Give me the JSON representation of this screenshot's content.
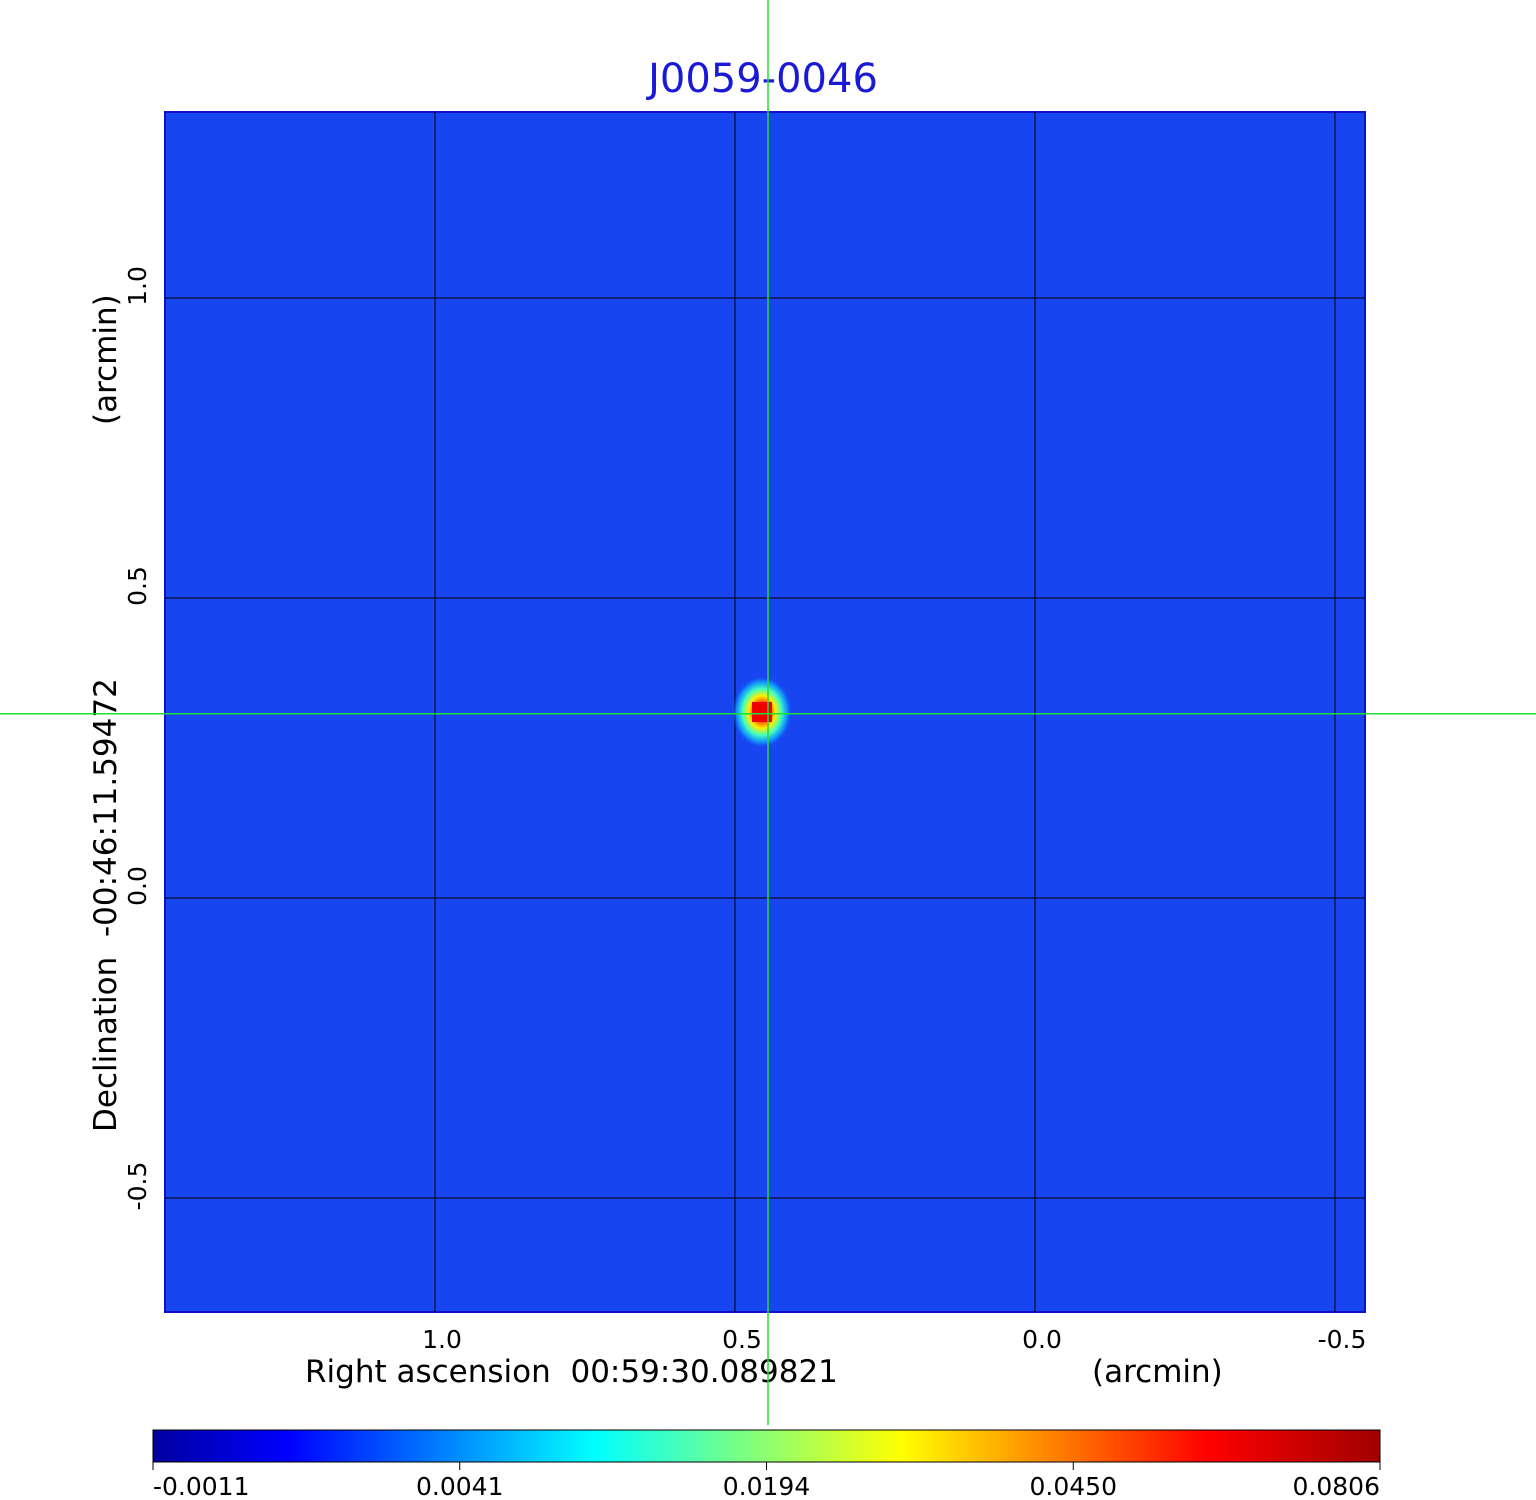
{
  "chart_data": {
    "type": "heatmap",
    "title": "J0059-0046",
    "xlabel": "Right ascension  00:59:30.089821",
    "xunit": "(arcmin)",
    "ylabel": "Declination  -00:46:11.59472",
    "yunit": "(arcmin)",
    "x_range": [
      1.45,
      -0.55
    ],
    "y_range": [
      -0.69,
      1.31
    ],
    "x_ticks": [
      {
        "value": 1.0,
        "label": "1.0"
      },
      {
        "value": 0.5,
        "label": "0.5"
      },
      {
        "value": 0.0,
        "label": "0.0"
      },
      {
        "value": -0.5,
        "label": "-0.5"
      }
    ],
    "y_ticks": [
      {
        "value": -0.5,
        "label": "-0.5"
      },
      {
        "value": 0.0,
        "label": "0.0"
      },
      {
        "value": 0.5,
        "label": "0.5"
      },
      {
        "value": 1.0,
        "label": "1.0"
      }
    ],
    "grid": true,
    "source": {
      "x": 0.455,
      "y": 0.31,
      "peak": 0.0806
    },
    "crosshair": {
      "x": 0.445,
      "y": 0.307
    },
    "colorbar": {
      "placement": "bottom",
      "colormap": "jet",
      "tick_labels": [
        "-0.0011",
        "0.0041",
        "0.0194",
        "0.0450",
        "0.0806"
      ],
      "tick_values": [
        -0.0011,
        0.0041,
        0.0194,
        0.045,
        0.0806
      ]
    },
    "colors": {
      "background": "#1746f0",
      "grid": "#000000",
      "crosshair": "#22dd33",
      "title": "#1a1ad6"
    }
  }
}
